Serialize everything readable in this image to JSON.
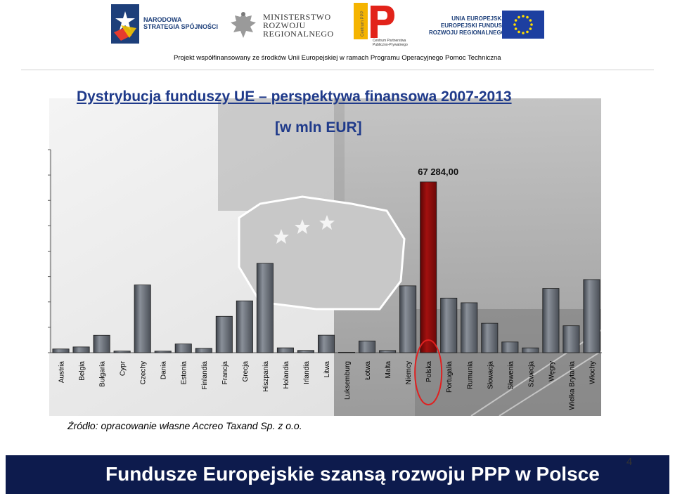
{
  "header": {
    "logo_strategy_text": "NARODOWA\nSTRATEGIA SPÓJNOŚCI",
    "logo_ministry_text": "MINISTERSTWO\nROZWOJU\nREGIONALNEGO",
    "logo_ppp_subtext": "Centrum Partnerstwa\nPubliczno-Prywatnego",
    "logo_ppp_vertical": "Centrum PPP",
    "logo_eu_text": "UNIA EUROPEJSKA\nEUROPEJSKI FUNDUSZ\nROZWOJU REGIONALNEGO",
    "project_line": "Projekt współfinansowany ze środków Unii Europejskiej w ramach Programu Operacyjnego Pomoc Techniczna"
  },
  "chart_data": {
    "type": "bar",
    "title": "Dystrybucja funduszy UE  – perspektywa finansowa 2007-2013",
    "subtitle": "[w mln EUR]",
    "xlabel": "",
    "ylabel": "",
    "ylim": [
      0,
      80000
    ],
    "grid": false,
    "categories": [
      "Austria",
      "Belgia",
      "Bułgaria",
      "Cypr",
      "Czechy",
      "Dania",
      "Estonia",
      "Finlandia",
      "Francja",
      "Grecja",
      "Hiszpania",
      "Holandia",
      "Irlandia",
      "Litwa",
      "Luksemburg",
      "Łotwa",
      "Malta",
      "Niemcy",
      "Polska",
      "Portugalia",
      "Rumunia",
      "Słowacja",
      "Słowenia",
      "Szwecja",
      "Węgry",
      "Wielka Brytania",
      "Włochy"
    ],
    "values": [
      1460,
      2260,
      6850,
      640,
      26690,
      610,
      3450,
      1720,
      14320,
      20420,
      35220,
      1910,
      900,
      6890,
      65,
      4620,
      860,
      26340,
      67284,
      21510,
      19670,
      11590,
      4210,
      1890,
      25310,
      10610,
      28810
    ],
    "highlight_category": "Polska",
    "highlight_label": "67 284,00",
    "colors": {
      "bar": "#6e7580",
      "bar_highlight": "#8b0d0d",
      "highlight_ring": "#e02020"
    }
  },
  "source_note": "Źródło: opracowanie własne Accreo Taxand Sp. z o.o.",
  "footer": {
    "slogan": "Fundusze Europejskie szansą rozwoju PPP w Polsce",
    "page_number": "4"
  }
}
